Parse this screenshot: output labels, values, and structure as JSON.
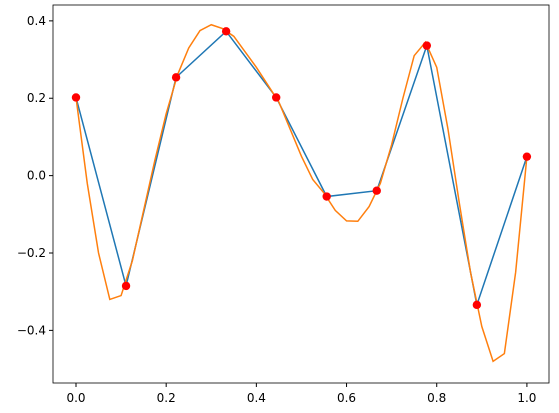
{
  "chart_data": {
    "type": "line",
    "xlim": [
      -0.051,
      1.049
    ],
    "ylim": [
      -0.536,
      0.441
    ],
    "xticks": [
      {
        "value": 0,
        "label": "0.0"
      },
      0.2,
      0.4,
      0.6,
      0.8,
      {
        "value": 1,
        "label": "1.0"
      }
    ],
    "yticks": [
      {
        "value": -0.4,
        "label": "−0.4"
      },
      {
        "value": -0.2,
        "label": "−0.2"
      },
      {
        "value": 0,
        "label": "0.0"
      },
      0.2,
      0.4
    ],
    "series": [
      {
        "kind": "line",
        "color": "#1f77b4",
        "x": [
          0,
          0.111,
          0.222,
          0.333,
          0.444,
          0.556,
          0.667,
          0.778,
          0.889,
          1
        ],
        "values": [
          0.202,
          -0.285,
          0.254,
          0.373,
          0.202,
          -0.054,
          -0.039,
          0.336,
          -0.334,
          0.049
        ]
      },
      {
        "kind": "line",
        "color": "#ff7f0e",
        "x": [
          0,
          0.025,
          0.05,
          0.075,
          0.1,
          0.125,
          0.15,
          0.175,
          0.2,
          0.225,
          0.25,
          0.275,
          0.3,
          0.325,
          0.35,
          0.375,
          0.4,
          0.425,
          0.45,
          0.475,
          0.5,
          0.525,
          0.55,
          0.575,
          0.6,
          0.625,
          0.65,
          0.675,
          0.7,
          0.725,
          0.75,
          0.775,
          0.8,
          0.825,
          0.85,
          0.875,
          0.9,
          0.925,
          0.95,
          0.975,
          1
        ],
        "values": [
          0.202,
          -0.02,
          -0.2,
          -0.32,
          -0.31,
          -0.22,
          -0.09,
          0.04,
          0.16,
          0.26,
          0.33,
          0.375,
          0.39,
          0.38,
          0.36,
          0.32,
          0.28,
          0.235,
          0.19,
          0.12,
          0.05,
          -0.01,
          -0.045,
          -0.09,
          -0.117,
          -0.118,
          -0.08,
          -0.02,
          0.08,
          0.2,
          0.31,
          0.345,
          0.28,
          0.12,
          -0.07,
          -0.25,
          -0.39,
          -0.48,
          -0.46,
          -0.25,
          0.049
        ]
      },
      {
        "kind": "scatter",
        "color": "red",
        "x": [
          0,
          0.111,
          0.222,
          0.333,
          0.444,
          0.556,
          0.667,
          0.778,
          0.889,
          1
        ],
        "values": [
          0.202,
          -0.285,
          0.254,
          0.373,
          0.202,
          -0.054,
          -0.039,
          0.336,
          -0.334,
          0.049
        ]
      }
    ]
  }
}
